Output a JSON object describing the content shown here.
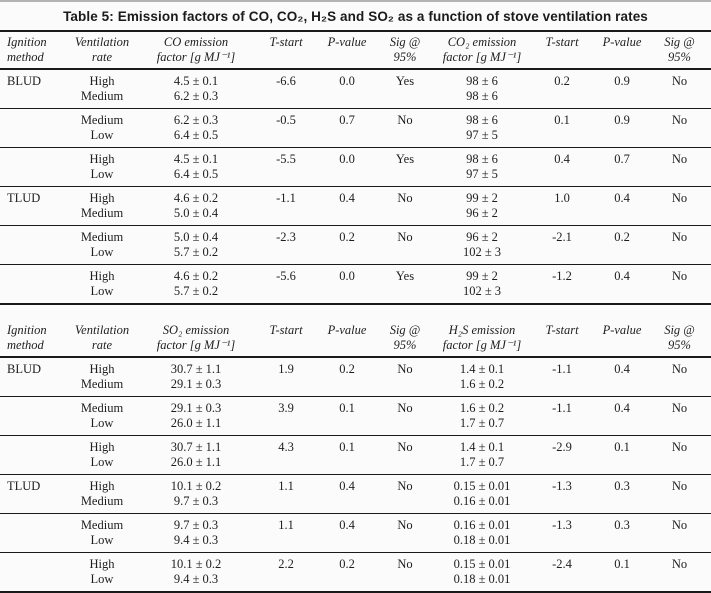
{
  "page": {
    "title": "Table 5: Emission factors of CO, CO₂, H₂S and SO₂ as a function of stove ventilation rates"
  },
  "sections": [
    {
      "header": {
        "method": [
          "Ignition",
          "method"
        ],
        "vent": [
          "Ventilation",
          "rate"
        ],
        "ef1": [
          "CO emission",
          "factor [g MJ⁻¹]"
        ],
        "t1": "T-start",
        "p1": "P-value",
        "sig1": [
          "Sig @",
          "95%"
        ],
        "ef2": [
          "CO₂ emission",
          "factor [g MJ⁻¹]"
        ],
        "t2": "T-start",
        "p2": "P-value",
        "sig2": [
          "Sig @",
          "95%"
        ]
      },
      "groups": [
        {
          "method": "BLUD",
          "vent": [
            "High",
            "Medium"
          ],
          "ef1": [
            "4.5 ± 0.1",
            "6.2 ± 0.3"
          ],
          "t1": "-6.6",
          "p1": "0.0",
          "sig1": "Yes",
          "ef2": [
            "98 ± 6",
            "98 ± 6"
          ],
          "t2": "0.2",
          "p2": "0.9",
          "sig2": "No"
        },
        {
          "method": "",
          "vent": [
            "Medium",
            "Low"
          ],
          "ef1": [
            "6.2 ± 0.3",
            "6.4 ± 0.5"
          ],
          "t1": "-0.5",
          "p1": "0.7",
          "sig1": "No",
          "ef2": [
            "98 ± 6",
            "97 ± 5"
          ],
          "t2": "0.1",
          "p2": "0.9",
          "sig2": "No"
        },
        {
          "method": "",
          "vent": [
            "High",
            "Low"
          ],
          "ef1": [
            "4.5 ± 0.1",
            "6.4 ± 0.5"
          ],
          "t1": "-5.5",
          "p1": "0.0",
          "sig1": "Yes",
          "ef2": [
            "98 ± 6",
            "97 ± 5"
          ],
          "t2": "0.4",
          "p2": "0.7",
          "sig2": "No"
        },
        {
          "method": "TLUD",
          "vent": [
            "High",
            "Medium"
          ],
          "ef1": [
            "4.6 ± 0.2",
            "5.0 ± 0.4"
          ],
          "t1": "-1.1",
          "p1": "0.4",
          "sig1": "No",
          "ef2": [
            "99 ± 2",
            "96 ± 2"
          ],
          "t2": "1.0",
          "p2": "0.4",
          "sig2": "No"
        },
        {
          "method": "",
          "vent": [
            "Medium",
            "Low"
          ],
          "ef1": [
            "5.0 ± 0.4",
            "5.7 ± 0.2"
          ],
          "t1": "-2.3",
          "p1": "0.2",
          "sig1": "No",
          "ef2": [
            "96 ± 2",
            "102 ± 3"
          ],
          "t2": "-2.1",
          "p2": "0.2",
          "sig2": "No"
        },
        {
          "method": "",
          "vent": [
            "High",
            "Low"
          ],
          "ef1": [
            "4.6 ± 0.2",
            "5.7 ± 0.2"
          ],
          "t1": "-5.6",
          "p1": "0.0",
          "sig1": "Yes",
          "ef2": [
            "99 ± 2",
            "102 ± 3"
          ],
          "t2": "-1.2",
          "p2": "0.4",
          "sig2": "No"
        }
      ]
    },
    {
      "header": {
        "method": [
          "Ignition",
          "method"
        ],
        "vent": [
          "Ventilation",
          "rate"
        ],
        "ef1": [
          "SO₂ emission",
          "factor [g MJ⁻¹]"
        ],
        "t1": "T-start",
        "p1": "P-value",
        "sig1": [
          "Sig @",
          "95%"
        ],
        "ef2": [
          "H₂S emission",
          "factor [g MJ⁻¹]"
        ],
        "t2": "T-start",
        "p2": "P-value",
        "sig2": [
          "Sig @",
          "95%"
        ]
      },
      "groups": [
        {
          "method": "BLUD",
          "vent": [
            "High",
            "Medium"
          ],
          "ef1": [
            "30.7 ± 1.1",
            "29.1 ± 0.3"
          ],
          "t1": "1.9",
          "p1": "0.2",
          "sig1": "No",
          "ef2": [
            "1.4 ± 0.1",
            "1.6 ± 0.2"
          ],
          "t2": "-1.1",
          "p2": "0.4",
          "sig2": "No"
        },
        {
          "method": "",
          "vent": [
            "Medium",
            "Low"
          ],
          "ef1": [
            "29.1 ± 0.3",
            "26.0 ± 1.1"
          ],
          "t1": "3.9",
          "p1": "0.1",
          "sig1": "No",
          "ef2": [
            "1.6 ± 0.2",
            "1.7 ± 0.7"
          ],
          "t2": "-1.1",
          "p2": "0.4",
          "sig2": "No"
        },
        {
          "method": "",
          "vent": [
            "High",
            "Low"
          ],
          "ef1": [
            "30.7 ± 1.1",
            "26.0 ± 1.1"
          ],
          "t1": "4.3",
          "p1": "0.1",
          "sig1": "No",
          "ef2": [
            "1.4 ± 0.1",
            "1.7 ± 0.7"
          ],
          "t2": "-2.9",
          "p2": "0.1",
          "sig2": "No"
        },
        {
          "method": "TLUD",
          "vent": [
            "High",
            "Medium"
          ],
          "ef1": [
            "10.1 ± 0.2",
            "9.7 ± 0.3"
          ],
          "t1": "1.1",
          "p1": "0.4",
          "sig1": "No",
          "ef2": [
            "0.15 ± 0.01",
            "0.16 ± 0.01"
          ],
          "t2": "-1.3",
          "p2": "0.3",
          "sig2": "No"
        },
        {
          "method": "",
          "vent": [
            "Medium",
            "Low"
          ],
          "ef1": [
            "9.7 ± 0.3",
            "9.4 ± 0.3"
          ],
          "t1": "1.1",
          "p1": "0.4",
          "sig1": "No",
          "ef2": [
            "0.16 ± 0.01",
            "0.18 ± 0.01"
          ],
          "t2": "-1.3",
          "p2": "0.3",
          "sig2": "No"
        },
        {
          "method": "",
          "vent": [
            "High",
            "Low"
          ],
          "ef1": [
            "10.1 ± 0.2",
            "9.4 ± 0.3"
          ],
          "t1": "2.2",
          "p1": "0.2",
          "sig1": "No",
          "ef2": [
            "0.15 ± 0.01",
            "0.18 ± 0.01"
          ],
          "t2": "-2.4",
          "p2": "0.1",
          "sig2": "No"
        }
      ]
    }
  ]
}
